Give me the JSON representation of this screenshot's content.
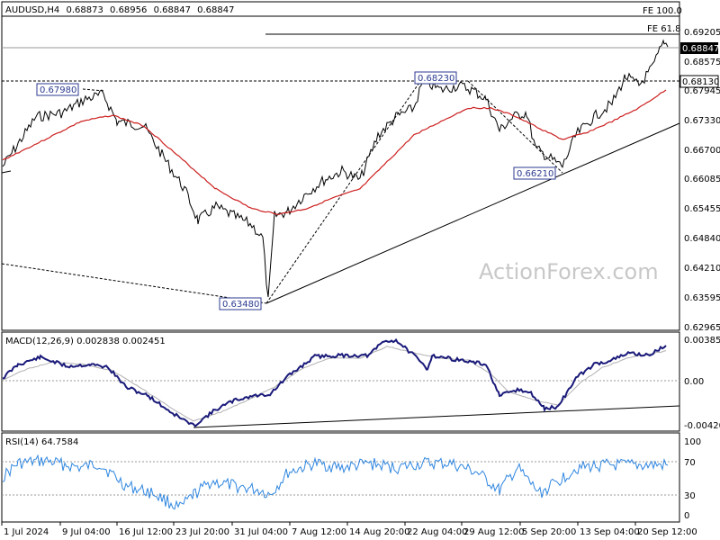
{
  "chart_data": [
    {
      "type": "candlestick",
      "title": "AUDUSD,H4",
      "ohlc": {
        "open": "0.68873",
        "high": "0.68956",
        "low": "0.68847",
        "close": "0.68847"
      },
      "x_tick_labels": [
        "1 Jul 2024",
        "9 Jul 04:00",
        "16 Jul 12:00",
        "23 Jul 20:00",
        "31 Jul 04:00",
        "7 Aug 12:00",
        "14 Aug 20:00",
        "22 Aug 04:00",
        "29 Aug 12:00",
        "5 Sep 20:00",
        "13 Sep 04:00",
        "20 Sep 12:00"
      ],
      "y_tick_labels": [
        "0.69205",
        "0.68575",
        "0.67945",
        "0.67330",
        "0.66700",
        "0.66085",
        "0.65455",
        "0.64840",
        "0.64210",
        "0.63595",
        "0.62965"
      ],
      "ylim": [
        0.6265,
        0.694
      ],
      "current_price": "0.68847",
      "price_level": "0.68130",
      "fibonacci_labels": [
        "FE 100.0",
        "FE 61.8"
      ],
      "annotated_levels": [
        {
          "label": "0.67980",
          "value": 0.6798
        },
        {
          "label": "0.68230",
          "value": 0.6823
        },
        {
          "label": "0.66210",
          "value": 0.6621
        },
        {
          "label": "0.63480",
          "value": 0.6348
        }
      ],
      "series": [
        {
          "name": "Price",
          "color": "#000000"
        },
        {
          "name": "MA",
          "color": "#cc1f1f"
        }
      ]
    },
    {
      "type": "line",
      "title": "MACD(12,26,9) 0.002838 0.002451",
      "y_tick_labels": [
        "0.003852",
        "0.00",
        "-0.004204"
      ],
      "ylim": [
        -0.0046,
        0.0048
      ],
      "series": [
        {
          "name": "MACD",
          "color": "#1a1a7a"
        },
        {
          "name": "Signal",
          "color": "#b0b0b0"
        }
      ]
    },
    {
      "type": "line",
      "title": "RSI(14) 64.7584",
      "y_tick_labels": [
        "100",
        "70",
        "30",
        "0"
      ],
      "ylim": [
        0,
        100
      ],
      "levels": [
        70,
        30
      ],
      "series": [
        {
          "name": "RSI",
          "color": "#2f86e0"
        }
      ]
    }
  ],
  "watermark": "ActionForex.com"
}
